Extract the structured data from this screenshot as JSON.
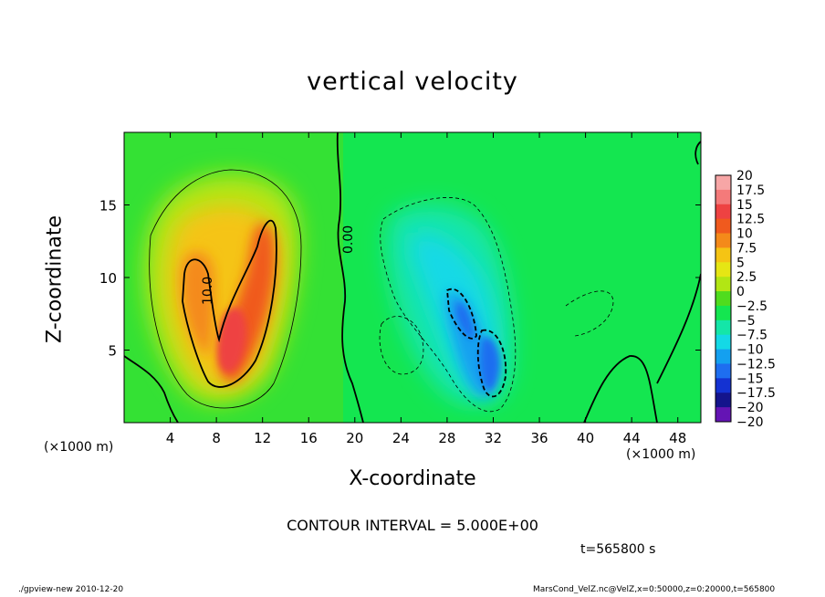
{
  "chart_data": {
    "type": "heatmap",
    "title": "vertical velocity",
    "xlabel": "X-coordinate",
    "ylabel": "Z-coordinate",
    "x_unit": "(×1000 m)",
    "y_unit": "(×1000 m)",
    "xlim": [
      0,
      50
    ],
    "ylim": [
      0,
      20
    ],
    "x_ticks": [
      4,
      8,
      12,
      16,
      20,
      24,
      28,
      32,
      36,
      40,
      44,
      48
    ],
    "y_ticks": [
      5,
      10,
      15
    ],
    "colorbar": {
      "labels": [
        "20",
        "17.5",
        "15",
        "12.5",
        "10",
        "7.5",
        "5",
        "2.5",
        "0",
        "−2.5",
        "−5",
        "−7.5",
        "−10",
        "−12.5",
        "−15",
        "−17.5",
        "−20"
      ],
      "colors": [
        "#f7a6a6",
        "#f47a7a",
        "#ee4242",
        "#f05a1e",
        "#f48a1a",
        "#f5c414",
        "#e6e614",
        "#b2e614",
        "#4fdc1e",
        "#14e650",
        "#14e6a8",
        "#14d9e6",
        "#14a0f0",
        "#1e6ef0",
        "#1432d2",
        "#14148c",
        "#6414b4"
      ]
    },
    "contour_labels": [
      "10.0",
      "0.00"
    ],
    "features": [
      {
        "kind": "updraft",
        "x_center": 9.5,
        "z_center": 7,
        "peak": 17.5
      },
      {
        "kind": "downdraft",
        "x_center": 31,
        "z_center": 5,
        "peak": -12.5
      }
    ]
  },
  "annotations": {
    "contour_interval": "CONTOUR INTERVAL = 5.000E+00",
    "time": "t=565800 s",
    "footer_left": "./gpview-new  2010-12-20",
    "footer_right": "MarsCond_VelZ.nc@VelZ,x=0:50000,z=0:20000,t=565800"
  }
}
